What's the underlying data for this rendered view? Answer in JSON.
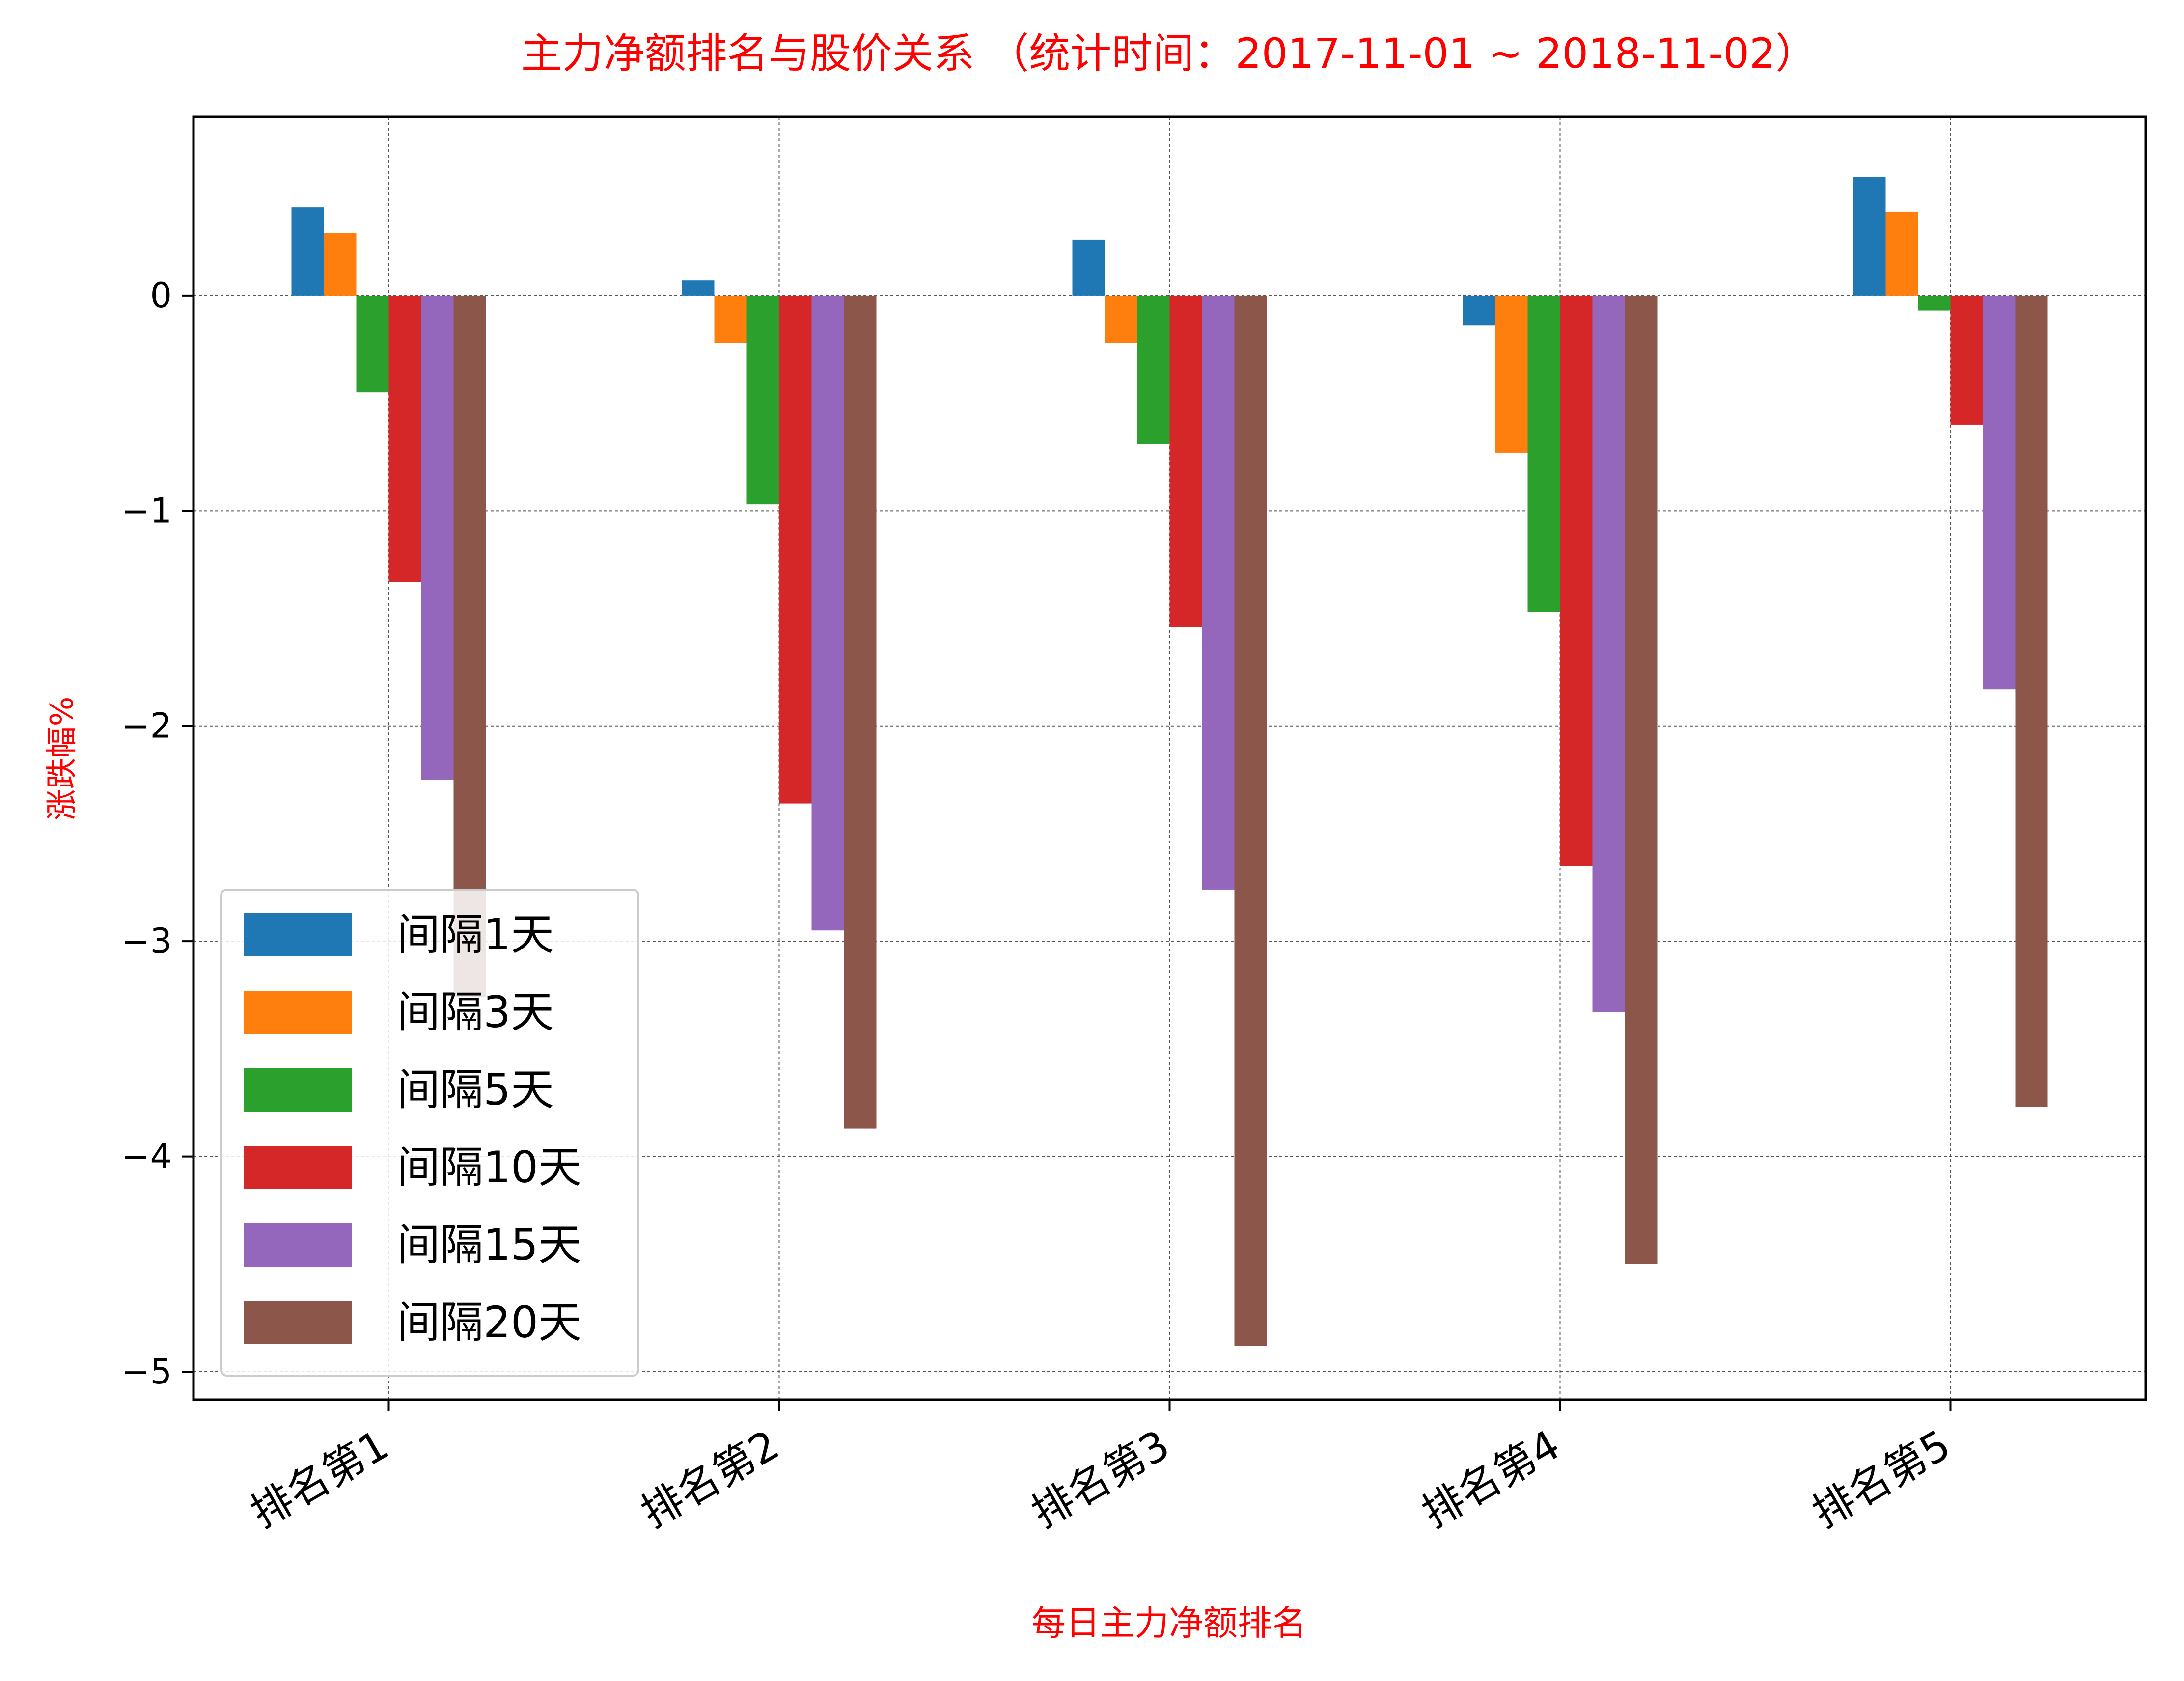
{
  "chart_data": {
    "type": "bar",
    "title": "主力净额排名与股价关系  （统计时间：2017-11-01 ~ 2018-11-02）",
    "xlabel": "每日主力净额排名",
    "ylabel": "涨跌幅%",
    "categories": [
      "排名第1",
      "排名第2",
      "排名第3",
      "排名第4",
      "排名第5"
    ],
    "ylim": [
      -5.13,
      0.83
    ],
    "yticks": [
      0,
      -1,
      -2,
      -3,
      -4,
      -5
    ],
    "ytick_labels": [
      "0",
      "−1",
      "−2",
      "−3",
      "−4",
      "−5"
    ],
    "grid": true,
    "legend_position": "lower-left",
    "series": [
      {
        "name": "间隔1天",
        "color": "#1f77b4",
        "values": [
          0.41,
          0.07,
          0.26,
          -0.14,
          0.55
        ]
      },
      {
        "name": "间隔3天",
        "color": "#ff7f0e",
        "values": [
          0.29,
          -0.22,
          -0.22,
          -0.73,
          0.39
        ]
      },
      {
        "name": "间隔5天",
        "color": "#2ca02c",
        "values": [
          -0.45,
          -0.97,
          -0.69,
          -1.47,
          -0.07
        ]
      },
      {
        "name": "间隔10天",
        "color": "#d62728",
        "values": [
          -1.33,
          -2.36,
          -1.54,
          -2.65,
          -0.6
        ]
      },
      {
        "name": "间隔15天",
        "color": "#9467bd",
        "values": [
          -2.25,
          -2.95,
          -2.76,
          -3.33,
          -1.83
        ]
      },
      {
        "name": "间隔20天",
        "color": "#8c564b",
        "values": [
          -3.26,
          -3.87,
          -4.88,
          -4.5,
          -3.77
        ]
      }
    ]
  },
  "colors": {
    "title": "#ff0000",
    "axis_label": "#ff0000",
    "grid": "#555555",
    "legend_border": "#cccccc"
  }
}
